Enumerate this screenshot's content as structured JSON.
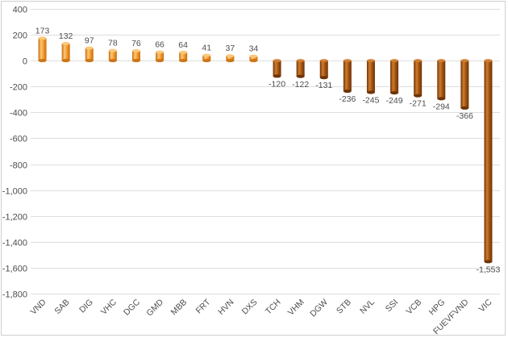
{
  "chart_data": {
    "type": "bar",
    "title": "",
    "xlabel": "",
    "ylabel": "",
    "categories": [
      "VND",
      "SAB",
      "DIG",
      "VHC",
      "DGC",
      "GMD",
      "MBB",
      "FRT",
      "HVN",
      "DXS",
      "TCH",
      "VHM",
      "DGW",
      "STB",
      "NVL",
      "SSI",
      "VCB",
      "HPG",
      "FUEVFVND",
      "VIC"
    ],
    "values": [
      173,
      132,
      97,
      78,
      76,
      66,
      64,
      41,
      37,
      34,
      -120,
      -122,
      -131,
      -236,
      -245,
      -249,
      -271,
      -294,
      -366,
      -1553
    ],
    "value_labels": [
      "173",
      "132",
      "97",
      "78",
      "76",
      "66",
      "64",
      "41",
      "37",
      "34",
      "-120",
      "-122",
      "-131",
      "-236",
      "-245",
      "-249",
      "-271",
      "-294",
      "-366",
      "-1,553"
    ],
    "ylim": [
      -1800,
      400
    ],
    "yticks": [
      400,
      200,
      0,
      -200,
      -400,
      -600,
      -800,
      -1000,
      -1200,
      -1400,
      -1600,
      -1800
    ],
    "ytick_labels": [
      "400",
      "200",
      "0",
      "-200",
      "-400",
      "-600",
      "-800",
      "-1,000",
      "-1,200",
      "-1,400",
      "-1,600",
      "-1,800"
    ],
    "grid": true,
    "legend": "none",
    "colors": {
      "positive": "#f39a2a",
      "positive_light": "#fbc87a",
      "positive_dark": "#c96b0c",
      "negative": "#a0520f",
      "negative_light": "#cf7c2e",
      "negative_dark": "#6e3407",
      "grid": "#dedede",
      "text": "#4d4d4d"
    }
  }
}
